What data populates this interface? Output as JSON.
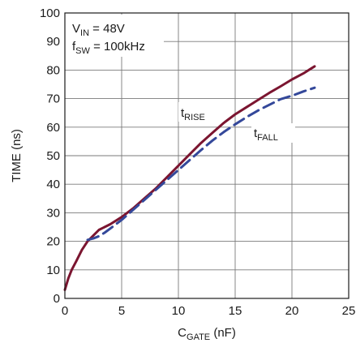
{
  "chart_data": {
    "type": "line",
    "xlabel": {
      "main": "C",
      "sub": "GATE",
      "rest": " (nF)"
    },
    "ylabel": "TIME (ns)",
    "xlim": [
      0,
      25
    ],
    "ylim": [
      0,
      100
    ],
    "xticks": [
      "0",
      "5",
      "10",
      "15",
      "20",
      "25"
    ],
    "yticks": [
      "0",
      "10",
      "20",
      "30",
      "40",
      "50",
      "60",
      "70",
      "80",
      "90",
      "100"
    ],
    "grid": true,
    "conditions": [
      {
        "main": "V",
        "sub": "IN",
        "rest": " = 48V"
      },
      {
        "main": "f",
        "sub": "SW",
        "rest": " = 100kHz"
      }
    ],
    "series": [
      {
        "name": "t_RISE",
        "label": {
          "main": "t",
          "sub": "RISE"
        },
        "color": "#7b1530",
        "dash": "solid",
        "x": [
          0,
          0.3,
          0.6,
          1.0,
          1.5,
          2.0,
          2.5,
          3.0,
          3.5,
          4.0,
          5.0,
          6.0,
          7.0,
          8.0,
          9.0,
          10.0,
          11.0,
          12.0,
          13.0,
          14.0,
          15.0,
          16.0,
          17.0,
          18.0,
          19.0,
          20.0,
          21.0,
          22.0
        ],
        "values": [
          3,
          7,
          10,
          13,
          17,
          20,
          22,
          24,
          25,
          26,
          28.5,
          31.5,
          35,
          38.5,
          42.5,
          46.5,
          50.5,
          54.5,
          58,
          61.5,
          64.5,
          67,
          69.5,
          72,
          74.3,
          76.7,
          78.8,
          81.3
        ]
      },
      {
        "name": "t_FALL",
        "label": {
          "main": "t",
          "sub": "FALL"
        },
        "color": "#34489a",
        "dash": "dashed",
        "x": [
          2.0,
          2.5,
          3.0,
          3.5,
          4.0,
          5.0,
          6.0,
          7.0,
          8.0,
          9.0,
          10.0,
          11.0,
          12.0,
          13.0,
          14.0,
          15.0,
          16.0,
          17.0,
          18.0,
          19.0,
          20.0,
          21.0,
          22.0
        ],
        "values": [
          20.5,
          21,
          21.8,
          23,
          24.5,
          27.5,
          31,
          34.5,
          38,
          41.5,
          45,
          48.5,
          52,
          55.3,
          58.3,
          61,
          63.5,
          65.8,
          67.8,
          69.8,
          71,
          72.5,
          73.8
        ]
      }
    ]
  }
}
